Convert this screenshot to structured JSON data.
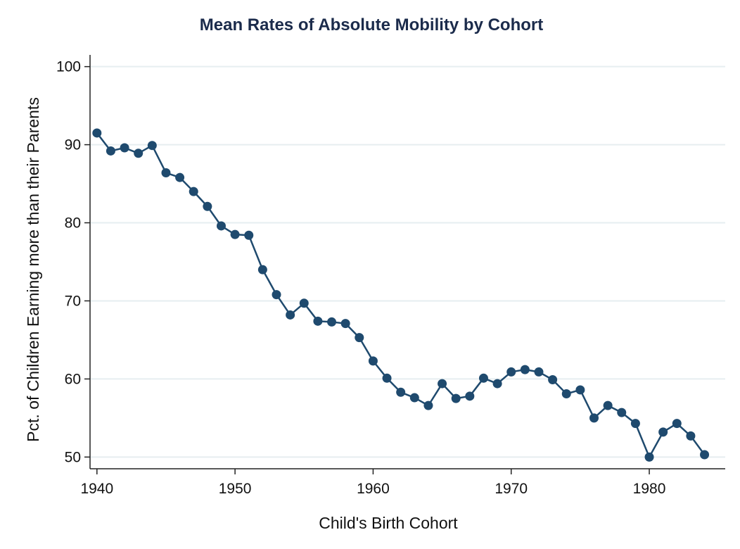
{
  "chart_data": {
    "type": "line",
    "title": "Mean Rates of Absolute Mobility by Cohort",
    "xlabel": "Child's Birth Cohort",
    "ylabel": "Pct. of Children Earning more than their Parents",
    "xlim": [
      1939.5,
      1985.5
    ],
    "ylim": [
      48.5,
      101.5
    ],
    "x_ticks": [
      1940,
      1950,
      1960,
      1970,
      1980
    ],
    "x_tick_labels": [
      "1940",
      "1950",
      "1960",
      "1970",
      "1980"
    ],
    "y_ticks": [
      50,
      60,
      70,
      80,
      90,
      100
    ],
    "y_tick_labels": [
      "50",
      "60",
      "70",
      "80",
      "90",
      "100"
    ],
    "grid": true,
    "legend": "none",
    "series_color": "#1f4a6e",
    "series": [
      {
        "x": [
          1940,
          1941,
          1942,
          1943,
          1944,
          1945,
          1946,
          1947,
          1948,
          1949,
          1950,
          1951,
          1952,
          1953,
          1954,
          1955,
          1956,
          1957,
          1958,
          1959,
          1960,
          1961,
          1962,
          1963,
          1964,
          1965,
          1966,
          1967,
          1968,
          1969,
          1970,
          1971,
          1972,
          1973,
          1974,
          1975,
          1976,
          1977,
          1978,
          1979,
          1980,
          1981,
          1982,
          1983,
          1984
        ],
        "values": [
          91.5,
          89.2,
          89.6,
          88.9,
          89.9,
          86.4,
          85.8,
          84.0,
          82.1,
          79.6,
          78.5,
          78.4,
          74.0,
          70.8,
          68.2,
          69.7,
          67.4,
          67.3,
          67.1,
          65.3,
          62.3,
          60.1,
          58.3,
          57.6,
          56.6,
          59.4,
          57.5,
          57.8,
          60.1,
          59.4,
          60.9,
          61.2,
          60.9,
          59.9,
          58.1,
          58.6,
          55.0,
          56.6,
          55.7,
          54.3,
          50.0,
          53.2,
          54.3,
          52.7,
          50.3
        ]
      }
    ]
  }
}
